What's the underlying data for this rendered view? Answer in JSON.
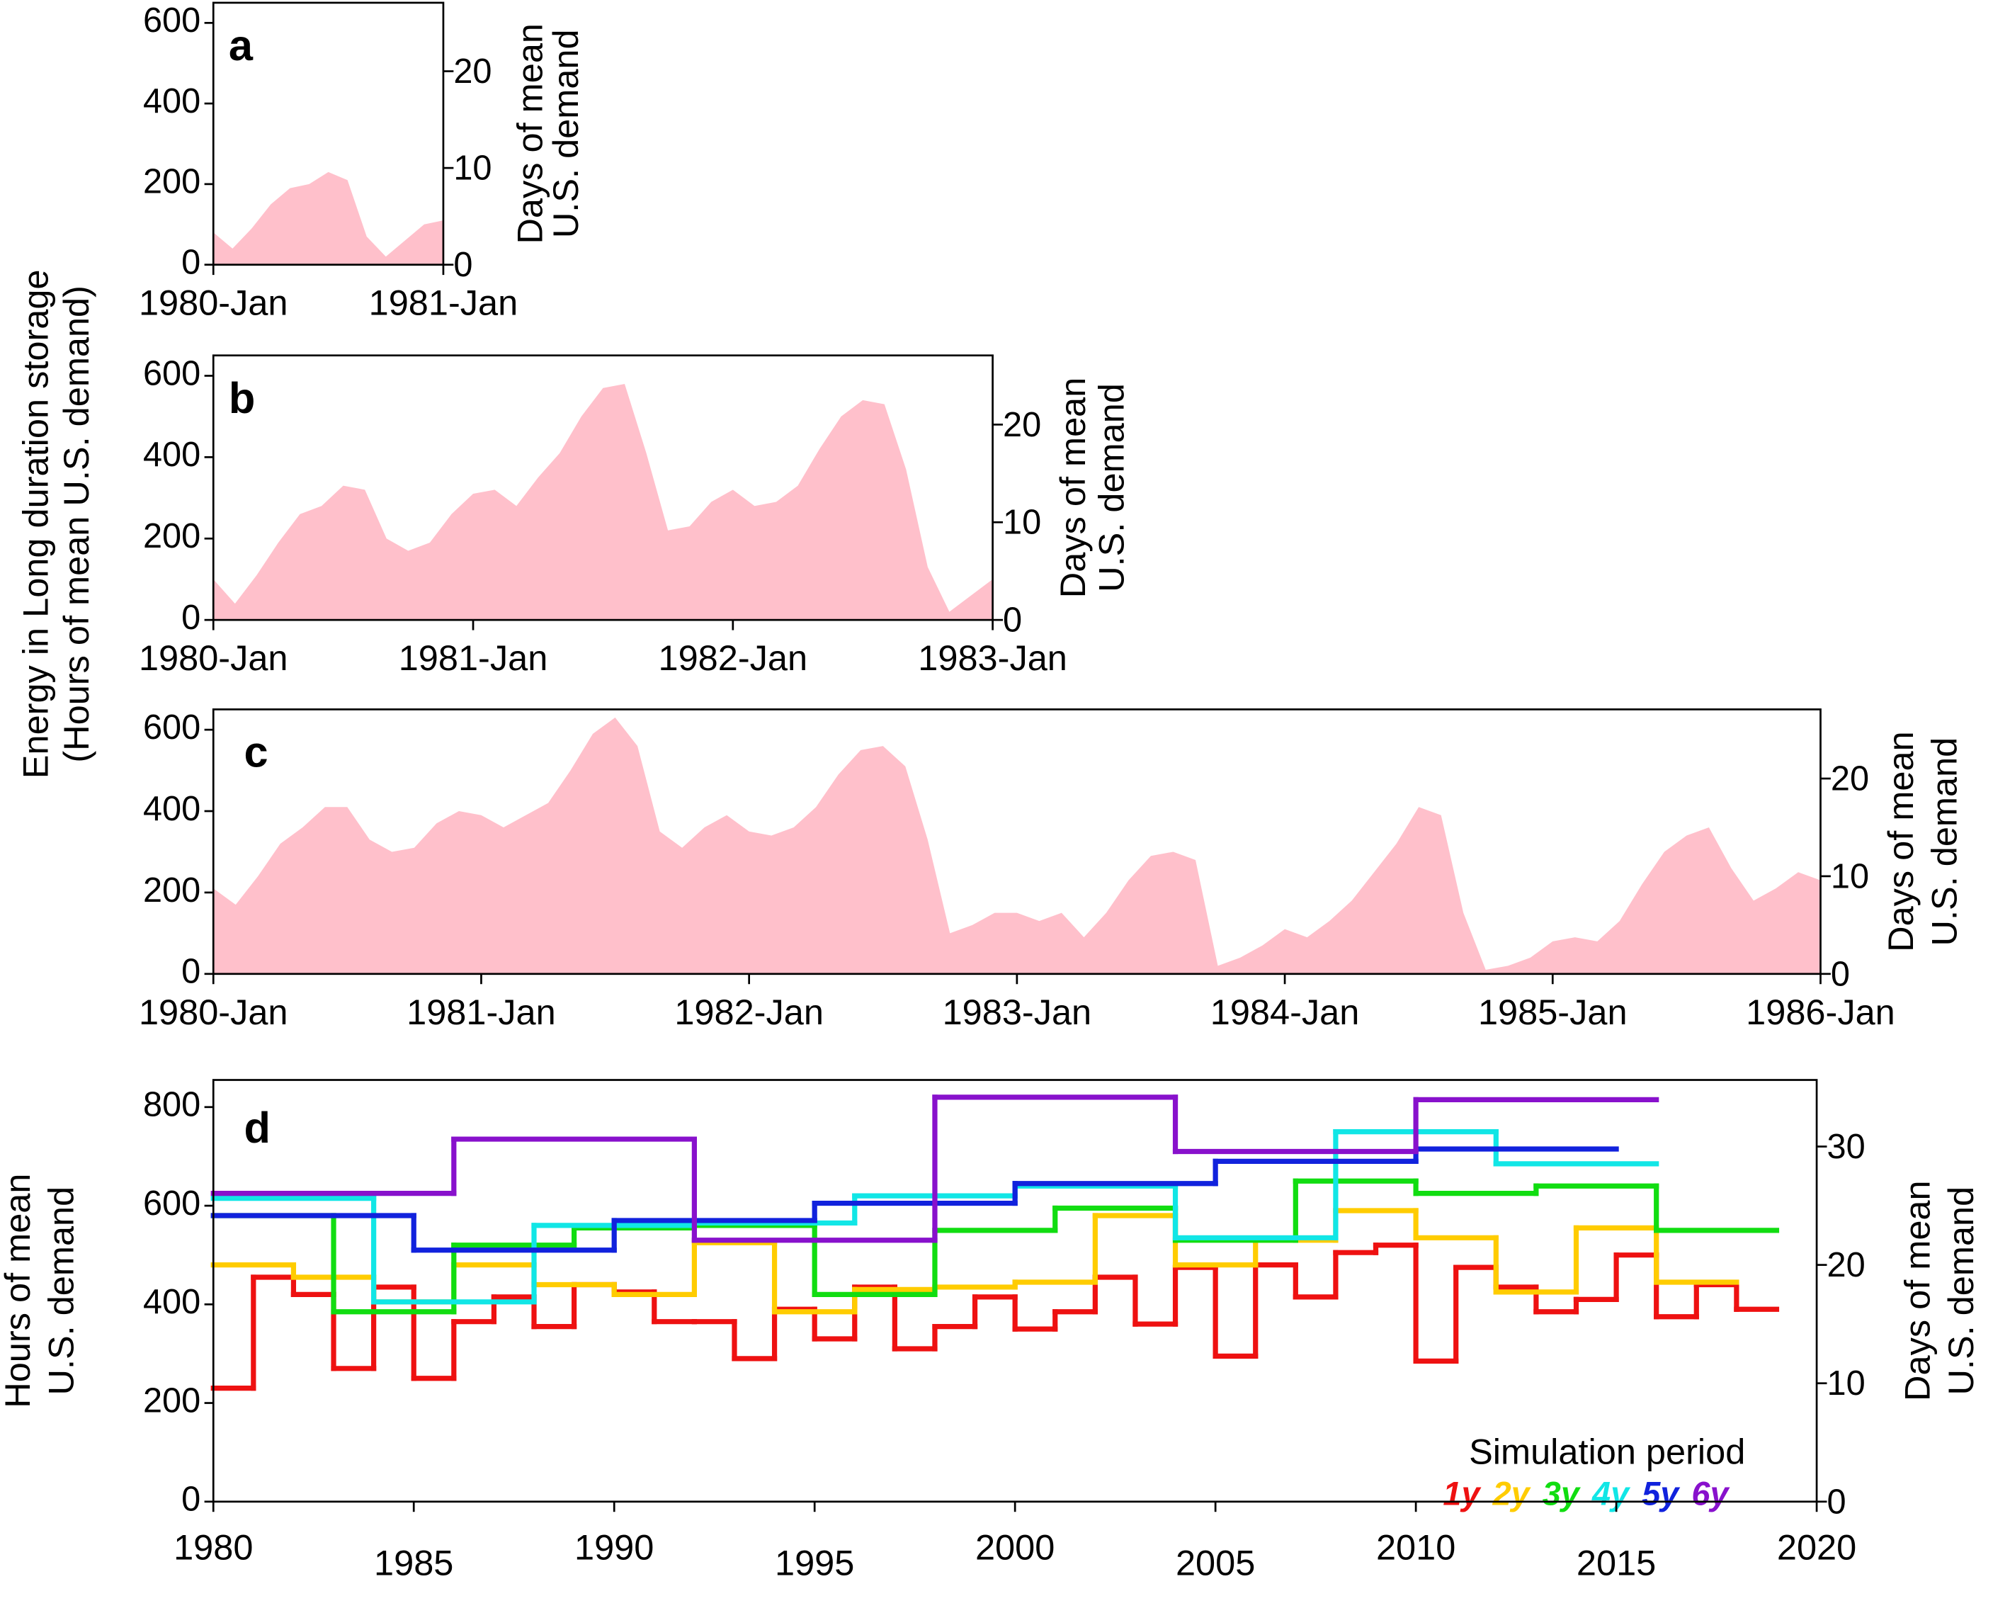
{
  "chart_data": [
    {
      "type": "area",
      "label": "a",
      "y2label": [
        "Days of mean",
        "U.S. demand"
      ],
      "color": "#ffc0cb",
      "x": [
        "1980-Jan",
        "1980-Feb",
        "1980-Mar",
        "1980-Apr",
        "1980-May",
        "1980-Jun",
        "1980-Jul",
        "1980-Aug",
        "1980-Sep",
        "1980-Oct",
        "1980-Nov",
        "1980-Dec",
        "1981-Jan"
      ],
      "values": [
        80,
        40,
        90,
        150,
        190,
        200,
        230,
        210,
        70,
        20,
        60,
        100,
        110
      ],
      "xlim": [
        "1980-Jan",
        "1981-Jan"
      ],
      "xticks": [
        "1980-Jan",
        "1981-Jan"
      ],
      "ylim": [
        0,
        650
      ],
      "yticks": [
        0,
        200,
        400,
        600
      ],
      "y2lim": [
        0,
        27.08
      ],
      "y2ticks": [
        0,
        10,
        20
      ]
    },
    {
      "type": "area",
      "label": "b",
      "ylabel": [
        "Energy in Long duration storage",
        "(Hours of mean U.S. demand)"
      ],
      "y2label": [
        "Days of mean",
        "U.S. demand"
      ],
      "color": "#ffc0cb",
      "x": [
        "1980-Jan",
        "1980-Feb",
        "1980-Mar",
        "1980-Apr",
        "1980-May",
        "1980-Jun",
        "1980-Jul",
        "1980-Aug",
        "1980-Sep",
        "1980-Oct",
        "1980-Nov",
        "1980-Dec",
        "1981-Jan",
        "1981-Feb",
        "1981-Mar",
        "1981-Apr",
        "1981-May",
        "1981-Jun",
        "1981-Jul",
        "1981-Aug",
        "1981-Sep",
        "1981-Oct",
        "1981-Nov",
        "1981-Dec",
        "1982-Jan",
        "1982-Feb",
        "1982-Mar",
        "1982-Apr",
        "1982-May",
        "1982-Jun",
        "1982-Jul",
        "1982-Aug",
        "1982-Sep",
        "1982-Oct",
        "1982-Nov",
        "1982-Dec",
        "1983-Jan"
      ],
      "values": [
        100,
        40,
        110,
        190,
        260,
        280,
        330,
        320,
        200,
        170,
        190,
        260,
        310,
        320,
        280,
        350,
        410,
        500,
        570,
        580,
        410,
        220,
        230,
        290,
        320,
        280,
        290,
        330,
        420,
        500,
        540,
        530,
        370,
        130,
        20,
        60,
        100
      ],
      "xlim": [
        "1980-Jan",
        "1983-Jan"
      ],
      "xticks": [
        "1980-Jan",
        "1981-Jan",
        "1982-Jan",
        "1983-Jan"
      ],
      "ylim": [
        0,
        650
      ],
      "yticks": [
        0,
        200,
        400,
        600
      ],
      "y2lim": [
        0,
        27.08
      ],
      "y2ticks": [
        0,
        10,
        20
      ]
    },
    {
      "type": "area",
      "label": "c",
      "y2label": [
        "Days of mean",
        "U.S. demand"
      ],
      "color": "#ffc0cb",
      "x": [
        "1980-Jan",
        "1980-Feb",
        "1980-Mar",
        "1980-Apr",
        "1980-May",
        "1980-Jun",
        "1980-Jul",
        "1980-Aug",
        "1980-Sep",
        "1980-Oct",
        "1980-Nov",
        "1980-Dec",
        "1981-Jan",
        "1981-Feb",
        "1981-Mar",
        "1981-Apr",
        "1981-May",
        "1981-Jun",
        "1981-Jul",
        "1981-Aug",
        "1981-Sep",
        "1981-Oct",
        "1981-Nov",
        "1981-Dec",
        "1982-Jan",
        "1982-Feb",
        "1982-Mar",
        "1982-Apr",
        "1982-May",
        "1982-Jun",
        "1982-Jul",
        "1982-Aug",
        "1982-Sep",
        "1982-Oct",
        "1982-Nov",
        "1982-Dec",
        "1983-Jan",
        "1983-Feb",
        "1983-Mar",
        "1983-Apr",
        "1983-May",
        "1983-Jun",
        "1983-Jul",
        "1983-Aug",
        "1983-Sep",
        "1983-Oct",
        "1983-Nov",
        "1983-Dec",
        "1984-Jan",
        "1984-Feb",
        "1984-Mar",
        "1984-Apr",
        "1984-May",
        "1984-Jun",
        "1984-Jul",
        "1984-Aug",
        "1984-Sep",
        "1984-Oct",
        "1984-Nov",
        "1984-Dec",
        "1985-Jan",
        "1985-Feb",
        "1985-Mar",
        "1985-Apr",
        "1985-May",
        "1985-Jun",
        "1985-Jul",
        "1985-Aug",
        "1985-Sep",
        "1985-Oct",
        "1985-Nov",
        "1985-Dec",
        "1986-Jan"
      ],
      "values": [
        210,
        170,
        240,
        320,
        360,
        410,
        410,
        330,
        300,
        310,
        370,
        400,
        390,
        360,
        390,
        420,
        500,
        590,
        630,
        560,
        350,
        310,
        360,
        390,
        350,
        340,
        360,
        410,
        490,
        550,
        560,
        510,
        330,
        100,
        120,
        150,
        150,
        130,
        150,
        90,
        150,
        230,
        290,
        300,
        280,
        20,
        40,
        70,
        110,
        90,
        130,
        180,
        250,
        320,
        410,
        390,
        150,
        10,
        20,
        40,
        80,
        90,
        80,
        130,
        220,
        300,
        340,
        360,
        260,
        180,
        210,
        250,
        230
      ],
      "xlim": [
        "1980-Jan",
        "1986-Jan"
      ],
      "xticks": [
        "1980-Jan",
        "1981-Jan",
        "1982-Jan",
        "1983-Jan",
        "1984-Jan",
        "1985-Jan",
        "1986-Jan"
      ],
      "ylim": [
        0,
        650
      ],
      "yticks": [
        0,
        200,
        400,
        600
      ],
      "y2lim": [
        0,
        27.08
      ],
      "y2ticks": [
        0,
        10,
        20
      ]
    },
    {
      "type": "step",
      "label": "d",
      "ylabel": [
        "Hours of mean",
        "U.S. demand"
      ],
      "y2label": [
        "Days of mean",
        "U.S. demand"
      ],
      "legend_title": "Simulation period",
      "series": [
        {
          "name": "1y",
          "color": "#ee1111",
          "bins": [
            1980,
            1981,
            1982,
            1983,
            1984,
            1985,
            1986,
            1987,
            1988,
            1989,
            1990,
            1991,
            1992,
            1993,
            1994,
            1995,
            1996,
            1997,
            1998,
            1999,
            2000,
            2001,
            2002,
            2003,
            2004,
            2005,
            2006,
            2007,
            2008,
            2009,
            2010,
            2011,
            2012,
            2013,
            2014,
            2015,
            2016,
            2017,
            2018,
            2019
          ],
          "values": [
            230,
            455,
            420,
            270,
            435,
            250,
            365,
            415,
            355,
            440,
            425,
            365,
            365,
            290,
            390,
            330,
            435,
            310,
            355,
            415,
            350,
            385,
            455,
            360,
            475,
            295,
            480,
            415,
            505,
            520,
            285,
            475,
            435,
            385,
            410,
            500,
            375,
            440,
            390
          ]
        },
        {
          "name": "2y",
          "color": "#ffcc00",
          "bins": [
            1980,
            1982,
            1984,
            1986,
            1988,
            1990,
            1992,
            1994,
            1996,
            1998,
            2000,
            2002,
            2004,
            2006,
            2008,
            2010,
            2012,
            2014,
            2016,
            2018
          ],
          "values": [
            480,
            455,
            405,
            480,
            440,
            420,
            525,
            385,
            430,
            435,
            445,
            580,
            480,
            530,
            590,
            535,
            425,
            555,
            445
          ]
        },
        {
          "name": "3y",
          "color": "#11dd11",
          "bins": [
            1980,
            1983,
            1986,
            1989,
            1992,
            1995,
            1998,
            2001,
            2004,
            2007,
            2010,
            2013,
            2016,
            2019
          ],
          "values": [
            580,
            385,
            520,
            555,
            560,
            420,
            550,
            595,
            530,
            650,
            625,
            640,
            550
          ]
        },
        {
          "name": "4y",
          "color": "#11e6e6",
          "bins": [
            1980,
            1984,
            1988,
            1992,
            1996,
            2000,
            2004,
            2008,
            2012,
            2016
          ],
          "values": [
            615,
            405,
            560,
            565,
            620,
            640,
            535,
            750,
            685
          ]
        },
        {
          "name": "5y",
          "color": "#1122dd",
          "bins": [
            1980,
            1985,
            1990,
            1995,
            2000,
            2005,
            2010,
            2015
          ],
          "values": [
            580,
            510,
            570,
            605,
            645,
            690,
            715
          ]
        },
        {
          "name": "6y",
          "color": "#8811cc",
          "bins": [
            1980,
            1986,
            1992,
            1998,
            2004,
            2010,
            2016
          ],
          "values": [
            625,
            735,
            530,
            820,
            710,
            815
          ]
        }
      ],
      "xlim": [
        1980,
        2020
      ],
      "xticks": [
        1980,
        1985,
        1990,
        1995,
        2000,
        2005,
        2010,
        2015,
        2020
      ],
      "ylim": [
        0,
        855
      ],
      "yticks": [
        0,
        200,
        400,
        600,
        800
      ],
      "y2lim": [
        0,
        35.625
      ],
      "y2ticks": [
        0,
        10,
        20,
        30
      ]
    }
  ]
}
